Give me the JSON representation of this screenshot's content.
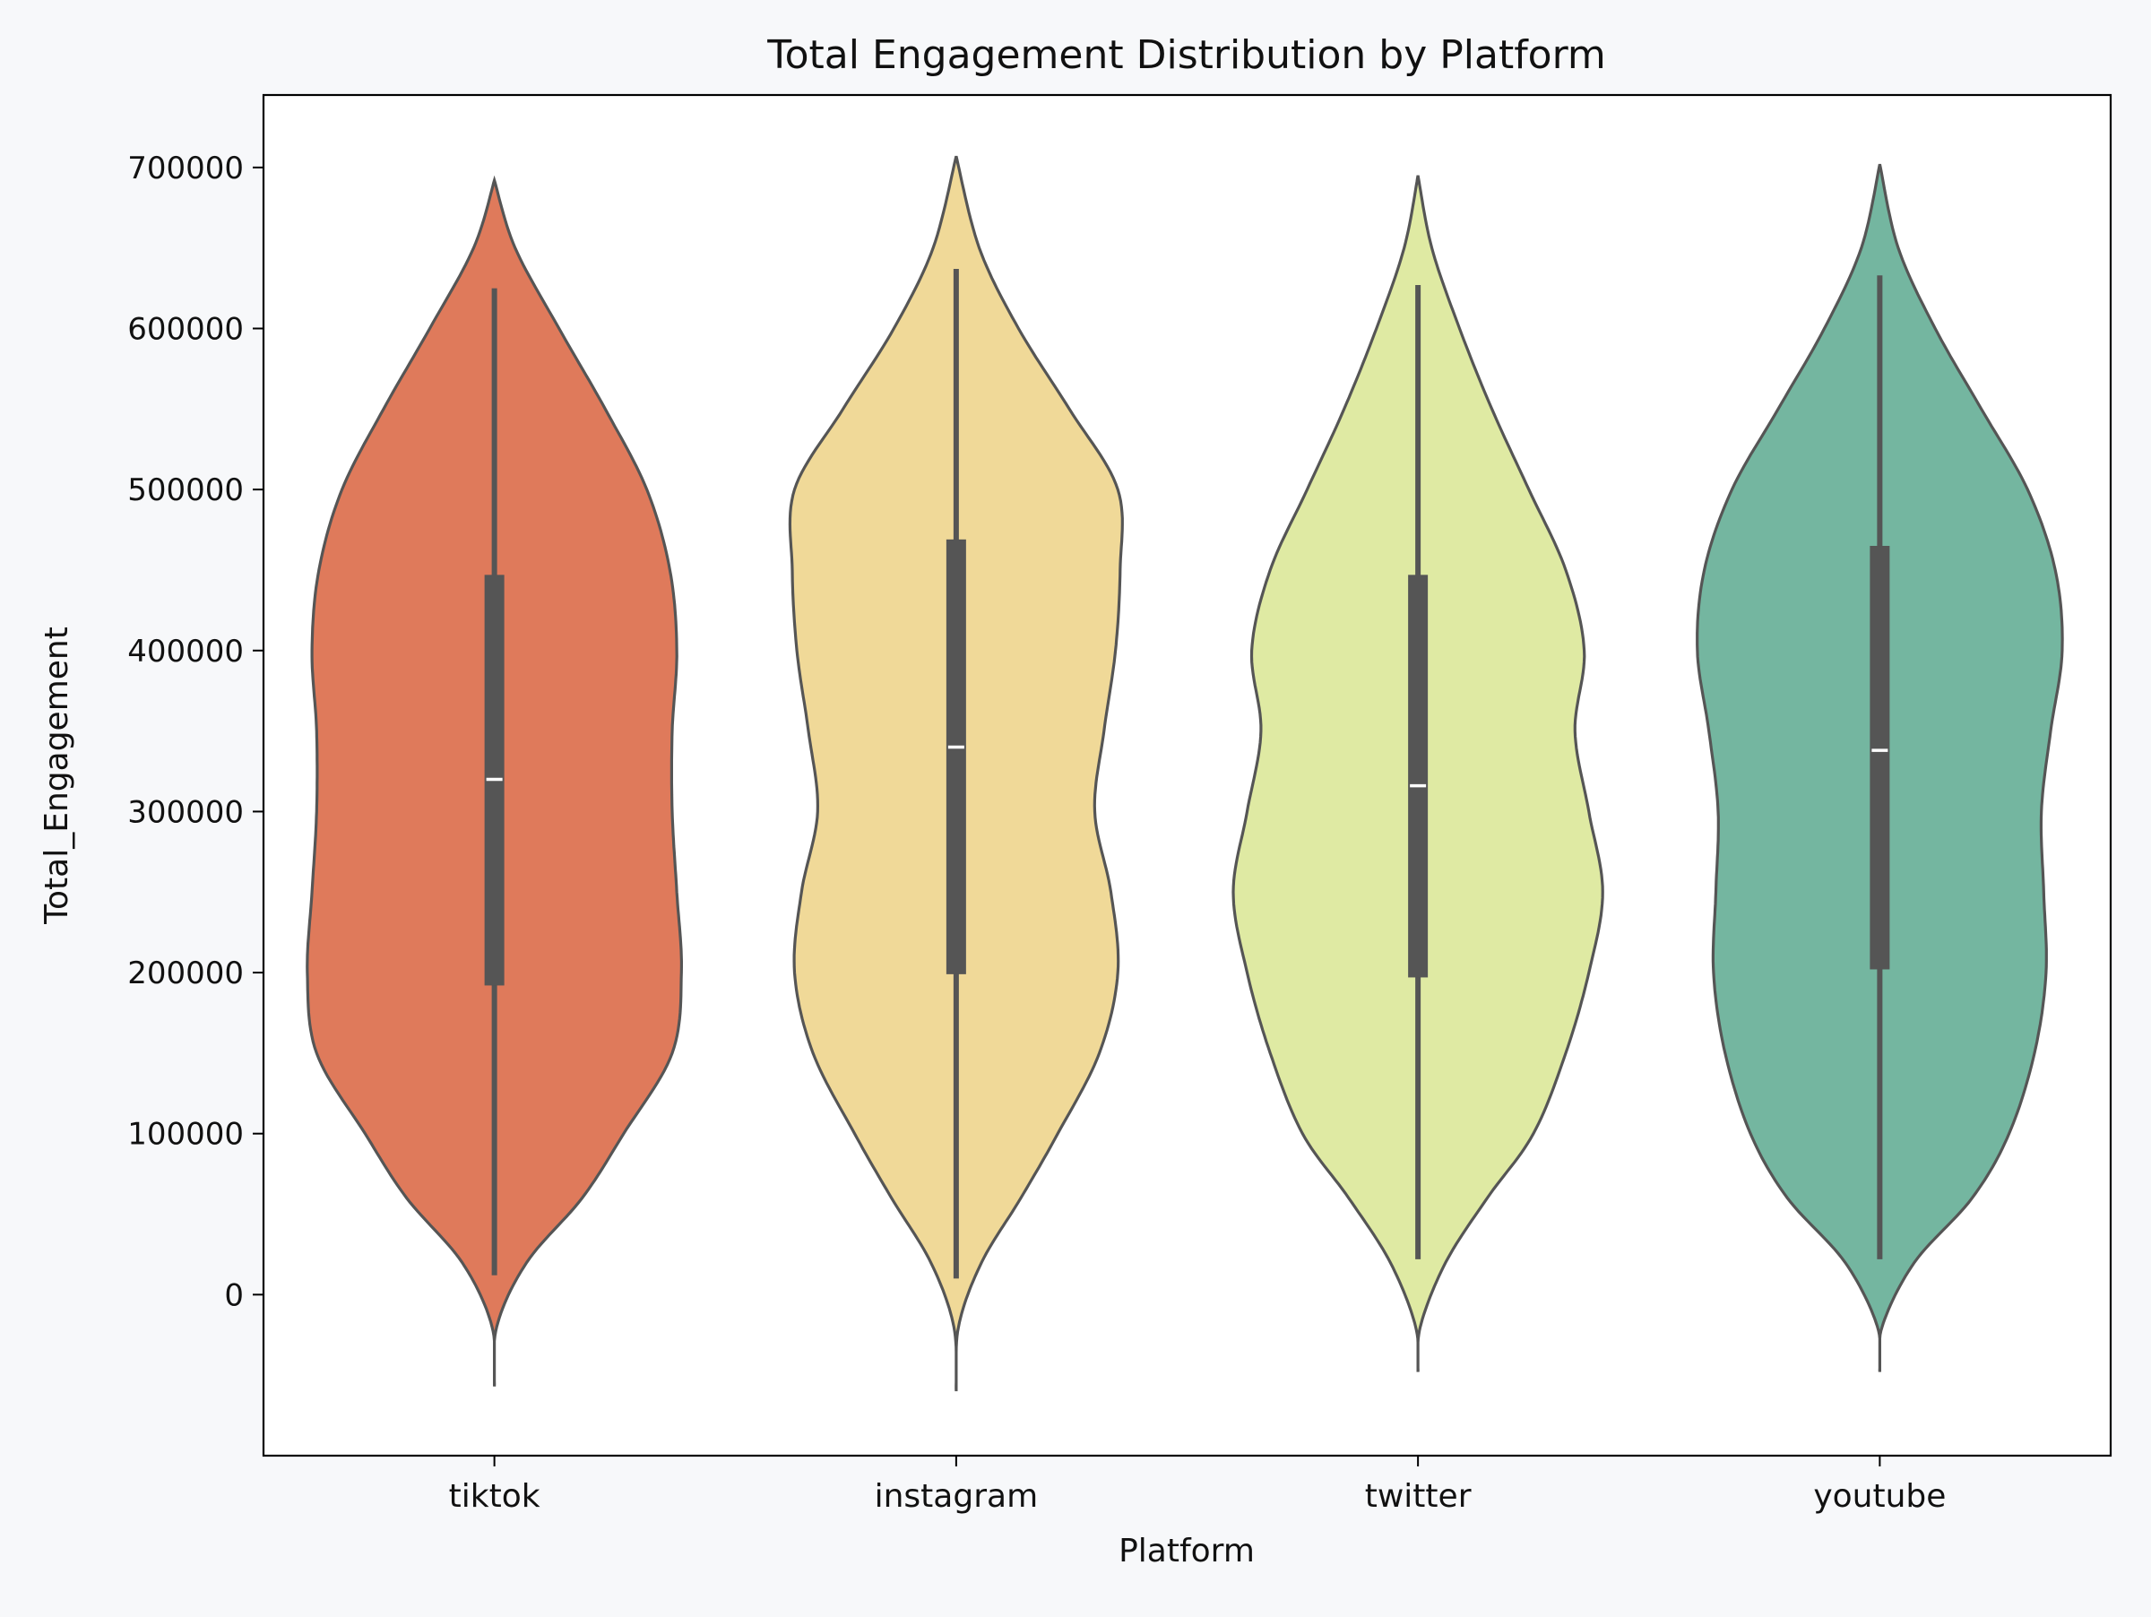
{
  "chart_data": {
    "type": "violin",
    "title": "Total Engagement Distribution by Platform",
    "xlabel": "Platform",
    "ylabel": "Total_Engagement",
    "categories": [
      "tiktok",
      "instagram",
      "twitter",
      "youtube"
    ],
    "ylim": [
      -100000,
      745000
    ],
    "yticks": [
      0,
      100000,
      200000,
      300000,
      400000,
      500000,
      600000,
      700000
    ],
    "ytick_labels": [
      "0",
      "100000",
      "200000",
      "300000",
      "400000",
      "500000",
      "600000",
      "700000"
    ],
    "grid": false,
    "colors": {
      "tiktok": "#df7a5b",
      "instagram": "#f0d998",
      "twitter": "#dfeaa3",
      "youtube": "#74b6a0",
      "outline": "#555555",
      "box": "#555555",
      "median": "#ffffff"
    },
    "series": [
      {
        "name": "tiktok",
        "density_y": [
          -57000,
          -20000,
          20000,
          60000,
          100000,
          150000,
          200000,
          250000,
          300000,
          350000,
          400000,
          450000,
          500000,
          550000,
          600000,
          650000,
          692000
        ],
        "density_half_width": [
          0,
          0.005,
          0.07,
          0.19,
          0.28,
          0.385,
          0.405,
          0.395,
          0.385,
          0.385,
          0.395,
          0.38,
          0.33,
          0.24,
          0.14,
          0.045,
          0
        ],
        "whisker_low": 12000,
        "q1": 192000,
        "median": 320000,
        "q3": 447000,
        "whisker_high": 625000
      },
      {
        "name": "instagram",
        "density_y": [
          -60000,
          -20000,
          20000,
          60000,
          100000,
          150000,
          200000,
          250000,
          300000,
          350000,
          400000,
          450000,
          500000,
          550000,
          600000,
          650000,
          707000
        ],
        "density_half_width": [
          0,
          0.005,
          0.055,
          0.14,
          0.22,
          0.31,
          0.35,
          0.335,
          0.3,
          0.32,
          0.345,
          0.355,
          0.35,
          0.245,
          0.135,
          0.05,
          0
        ],
        "whisker_low": 10000,
        "q1": 199000,
        "median": 340000,
        "q3": 469000,
        "whisker_high": 637000
      },
      {
        "name": "twitter",
        "density_y": [
          -48000,
          -20000,
          20000,
          60000,
          100000,
          150000,
          200000,
          250000,
          300000,
          350000,
          400000,
          450000,
          500000,
          550000,
          600000,
          650000,
          695000
        ],
        "density_half_width": [
          0,
          0.005,
          0.06,
          0.15,
          0.25,
          0.32,
          0.37,
          0.4,
          0.37,
          0.34,
          0.36,
          0.32,
          0.24,
          0.16,
          0.09,
          0.03,
          0
        ],
        "whisker_low": 22000,
        "q1": 197000,
        "median": 316000,
        "q3": 447000,
        "whisker_high": 627000
      },
      {
        "name": "youtube",
        "density_y": [
          -48000,
          -20000,
          20000,
          60000,
          100000,
          150000,
          200000,
          250000,
          300000,
          350000,
          400000,
          450000,
          500000,
          550000,
          600000,
          650000,
          702000
        ],
        "density_half_width": [
          0,
          0.005,
          0.075,
          0.2,
          0.28,
          0.335,
          0.36,
          0.355,
          0.35,
          0.37,
          0.395,
          0.38,
          0.32,
          0.22,
          0.12,
          0.04,
          0
        ],
        "whisker_low": 22000,
        "q1": 202000,
        "median": 338000,
        "q3": 465000,
        "whisker_high": 633000
      }
    ]
  }
}
